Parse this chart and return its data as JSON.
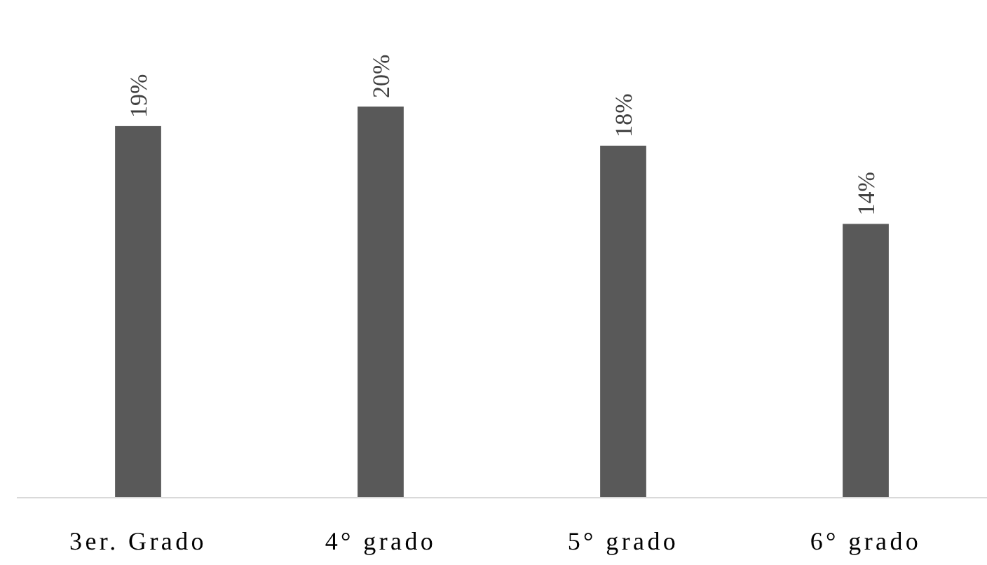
{
  "chart_data": {
    "type": "bar",
    "categories": [
      "3er. Grado",
      "4° grado",
      "5° grado",
      "6° grado"
    ],
    "values": [
      19,
      20,
      18,
      14
    ],
    "value_labels": [
      "19%",
      "20%",
      "18%",
      "14%"
    ],
    "color": "#595959"
  }
}
